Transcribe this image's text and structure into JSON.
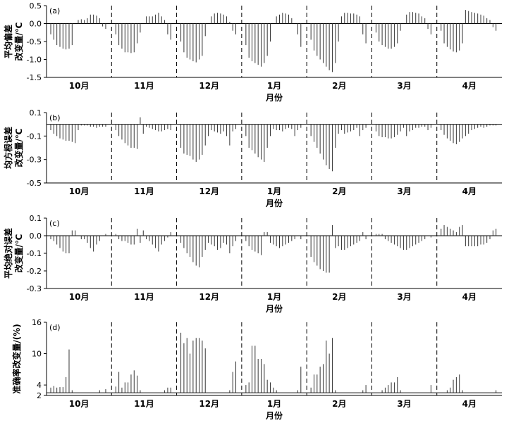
{
  "chart_data": [
    {
      "type": "bar",
      "panel_label": "(a)",
      "ylabel": "平均偏差\n改变量/℃",
      "xlabel": "",
      "ylim": [
        -1.5,
        0.5
      ],
      "yticks": [
        "0.5",
        "0.0",
        "-0.5",
        "-1.0",
        "-1.5"
      ],
      "categories": [
        "10月",
        "11月",
        "12月",
        "1月",
        "2月",
        "3月",
        "4月"
      ],
      "series": [
        [
          -0.3,
          -0.45,
          -0.6,
          -0.65,
          -0.7,
          -0.72,
          -0.7,
          -0.6,
          0.0,
          0.1,
          0.12,
          0.1,
          0.15,
          0.25,
          0.25,
          0.22,
          0.15,
          -0.08,
          -0.15
        ],
        [
          -0.3,
          -0.6,
          -0.7,
          -0.8,
          -0.8,
          -0.82,
          -0.8,
          -0.55,
          -0.25,
          0.0,
          0.2,
          0.2,
          0.2,
          0.25,
          0.3,
          0.2,
          0.1,
          -0.3,
          -0.45
        ],
        [
          -0.5,
          -0.8,
          -0.95,
          -1.0,
          -1.05,
          -1.08,
          -1.0,
          -0.9,
          -0.35,
          0.0,
          0.2,
          0.28,
          0.3,
          0.28,
          0.25,
          0.2,
          0.05,
          -0.2,
          -0.3
        ],
        [
          -0.6,
          -0.95,
          -1.05,
          -1.1,
          -1.15,
          -1.2,
          -1.1,
          -0.9,
          -0.5,
          0.0,
          0.2,
          0.25,
          0.3,
          0.28,
          0.25,
          0.15,
          0.0,
          -0.3,
          -0.65
        ],
        [
          -0.45,
          -0.75,
          -0.9,
          -1.0,
          -1.1,
          -1.2,
          -1.3,
          -1.35,
          -1.1,
          -0.5,
          0.2,
          0.3,
          0.3,
          0.28,
          0.28,
          0.25,
          0.2,
          -0.3,
          -0.55
        ],
        [
          -0.25,
          -0.5,
          -0.6,
          -0.65,
          -0.7,
          -0.7,
          -0.65,
          -0.55,
          -0.2,
          0.0,
          0.25,
          0.32,
          0.32,
          0.3,
          0.28,
          0.2,
          0.15,
          -0.15,
          -0.3
        ],
        [
          -0.2,
          -0.55,
          -0.65,
          -0.72,
          -0.78,
          -0.8,
          -0.75,
          -0.55,
          0.38,
          0.35,
          0.32,
          0.3,
          0.28,
          0.25,
          0.22,
          0.15,
          0.1,
          -0.1,
          -0.2
        ]
      ]
    },
    {
      "type": "bar",
      "panel_label": "(b)",
      "ylabel": "均方根误差\n改变量/℃",
      "xlabel": "月份",
      "ylim": [
        -0.5,
        0.1
      ],
      "yticks": [
        "0.1",
        "-0.1",
        "-0.3",
        "-0.5"
      ],
      "categories": [
        "10月",
        "11月",
        "12月",
        "1月",
        "2月",
        "3月",
        "4月"
      ],
      "series": [
        [
          -0.05,
          -0.08,
          -0.1,
          -0.12,
          -0.13,
          -0.14,
          -0.14,
          -0.15,
          -0.16,
          -0.05,
          -0.01,
          -0.01,
          -0.01,
          -0.02,
          -0.02,
          -0.03,
          -0.02,
          -0.02,
          -0.02
        ],
        [
          -0.05,
          -0.1,
          -0.13,
          -0.16,
          -0.18,
          -0.2,
          -0.2,
          -0.21,
          0.06,
          -0.08,
          -0.02,
          -0.03,
          -0.04,
          -0.05,
          -0.06,
          -0.06,
          -0.05,
          -0.04,
          -0.05
        ],
        [
          -0.2,
          -0.25,
          -0.26,
          -0.27,
          -0.3,
          -0.32,
          -0.3,
          -0.26,
          -0.18,
          -0.1,
          -0.05,
          -0.06,
          -0.07,
          -0.08,
          -0.06,
          -0.1,
          -0.18,
          -0.06,
          -0.04
        ],
        [
          -0.1,
          -0.2,
          -0.22,
          -0.25,
          -0.28,
          -0.3,
          -0.32,
          -0.2,
          -0.1,
          -0.04,
          -0.05,
          -0.05,
          -0.06,
          -0.04,
          -0.03,
          -0.04,
          -0.1,
          -0.05,
          -0.03
        ],
        [
          -0.1,
          -0.15,
          -0.2,
          -0.25,
          -0.3,
          -0.35,
          -0.38,
          -0.4,
          -0.2,
          -0.08,
          -0.05,
          -0.08,
          -0.07,
          -0.06,
          -0.05,
          -0.03,
          -0.1,
          -0.05,
          -0.03
        ],
        [
          -0.06,
          -0.1,
          -0.11,
          -0.11,
          -0.12,
          -0.12,
          -0.11,
          -0.09,
          -0.06,
          -0.03,
          -0.1,
          -0.06,
          -0.05,
          -0.03,
          -0.03,
          -0.02,
          -0.02,
          -0.05,
          -0.03
        ],
        [
          -0.05,
          -0.09,
          -0.12,
          -0.14,
          -0.16,
          -0.17,
          -0.15,
          -0.12,
          -0.1,
          -0.08,
          -0.05,
          -0.04,
          -0.03,
          -0.02,
          -0.03,
          -0.02,
          -0.01,
          -0.01,
          -0.01
        ]
      ]
    },
    {
      "type": "bar",
      "panel_label": "(c)",
      "ylabel": "平均绝对误差\n改变量/℃",
      "xlabel": "",
      "ylim": [
        -0.3,
        0.1
      ],
      "yticks": [
        "0.1",
        "0.0",
        "-0.1",
        "-0.2",
        "-0.3"
      ],
      "categories": [
        "10月",
        "11月",
        "12月",
        "1月",
        "2月",
        "3月",
        "4月"
      ],
      "series": [
        [
          -0.02,
          -0.03,
          -0.05,
          -0.07,
          -0.09,
          -0.1,
          -0.1,
          0.03,
          0.03,
          0.0,
          -0.02,
          -0.02,
          -0.04,
          -0.07,
          -0.09,
          -0.05,
          -0.03,
          0.0,
          0.01
        ],
        [
          0.01,
          -0.02,
          -0.03,
          -0.03,
          -0.04,
          -0.05,
          -0.05,
          0.04,
          -0.04,
          0.03,
          -0.02,
          -0.03,
          -0.05,
          -0.07,
          -0.09,
          -0.05,
          -0.03,
          -0.01,
          0.02
        ],
        [
          -0.04,
          -0.07,
          -0.1,
          -0.12,
          -0.15,
          -0.17,
          -0.18,
          -0.12,
          -0.08,
          -0.04,
          -0.05,
          -0.06,
          -0.08,
          -0.07,
          -0.04,
          -0.05,
          -0.1,
          -0.06,
          -0.03
        ],
        [
          -0.03,
          -0.06,
          -0.08,
          -0.09,
          -0.1,
          -0.11,
          0.02,
          0.02,
          -0.04,
          -0.05,
          -0.06,
          -0.07,
          -0.06,
          -0.05,
          -0.04,
          -0.03,
          -0.02,
          0.0,
          -0.02
        ],
        [
          -0.12,
          -0.15,
          -0.17,
          -0.19,
          -0.2,
          -0.21,
          -0.21,
          0.06,
          -0.07,
          -0.06,
          -0.08,
          -0.08,
          -0.07,
          -0.06,
          -0.05,
          -0.04,
          -0.03,
          0.02,
          -0.02
        ],
        [
          0.01,
          0.01,
          0.01,
          -0.02,
          -0.03,
          -0.04,
          -0.05,
          -0.06,
          -0.07,
          -0.08,
          -0.08,
          -0.07,
          -0.06,
          -0.05,
          -0.04,
          -0.03,
          -0.02,
          0.0,
          -0.01
        ],
        [
          0.04,
          0.06,
          0.05,
          0.04,
          0.03,
          0.02,
          0.05,
          0.06,
          -0.06,
          -0.06,
          -0.06,
          -0.06,
          -0.06,
          -0.05,
          -0.05,
          -0.04,
          -0.02,
          0.03,
          0.04
        ]
      ]
    },
    {
      "type": "bar",
      "panel_label": "(d)",
      "ylabel": "准确率改变量/(%)",
      "xlabel": "月份",
      "ylim": [
        2,
        16
      ],
      "yticks": [
        "16",
        "10",
        "4",
        "2"
      ],
      "categories": [
        "10月",
        "11月",
        "12月",
        "1月",
        "2月",
        "3月",
        "4月"
      ],
      "series": [
        [
          3.5,
          3.8,
          3.5,
          3.6,
          3.6,
          5.5,
          10.8,
          3.0,
          0,
          0,
          0,
          0,
          0,
          0,
          0,
          0,
          3.0,
          2.5,
          3.2
        ],
        [
          3.7,
          6.5,
          3.5,
          4.5,
          4.5,
          6.0,
          6.8,
          5.8,
          3.0,
          0,
          0,
          0,
          0,
          2.5,
          0,
          0,
          3.0,
          3.5,
          3.5
        ],
        [
          14.0,
          12.0,
          13.0,
          10.0,
          12.5,
          13.0,
          13.0,
          12.5,
          11.0,
          0,
          2.5,
          2.5,
          0,
          0,
          0,
          2.5,
          3.0,
          6.5,
          8.5
        ],
        [
          4.0,
          4.5,
          11.5,
          11.5,
          9.0,
          9.0,
          8.0,
          5.0,
          4.5,
          3.5,
          3.0,
          0,
          0,
          0,
          2.5,
          2.5,
          2.5,
          3.0,
          7.5
        ],
        [
          3.5,
          6.0,
          6.0,
          7.5,
          8.0,
          12.5,
          10.0,
          13.0,
          3.0,
          2.5,
          0,
          0,
          0,
          2.5,
          2.5,
          0,
          2.5,
          3.0,
          4.0
        ],
        [
          0,
          0,
          3.0,
          3.5,
          4.0,
          4.5,
          4.5,
          5.5,
          3.0,
          0,
          0,
          0,
          0,
          0,
          0,
          0,
          2.5,
          0,
          4.0
        ],
        [
          0,
          0,
          3.0,
          3.5,
          5.0,
          5.5,
          6.0,
          3.0,
          0,
          0,
          0,
          0,
          0,
          0,
          2.5,
          0,
          0,
          0,
          3.0
        ]
      ]
    }
  ]
}
